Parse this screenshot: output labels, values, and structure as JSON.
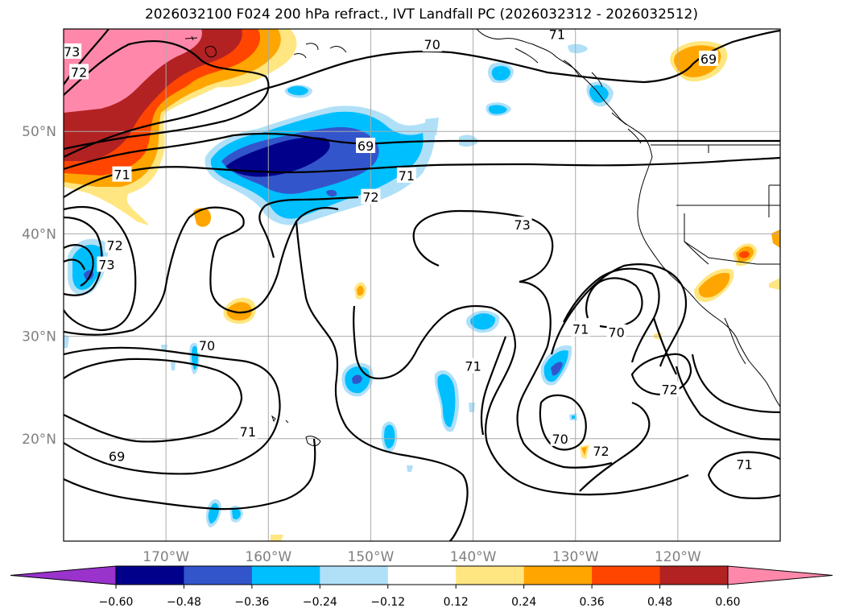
{
  "title": "2026032100 F024 200 hPa refract., IVT Landfall PC (2026032312 - 2026032512)",
  "axes": {
    "lon_ticks": [
      "170°W",
      "160°W",
      "150°W",
      "140°W",
      "130°W",
      "120°W"
    ],
    "lat_ticks": [
      "50°N",
      "40°N",
      "30°N",
      "20°N"
    ],
    "lon_range": [
      -180,
      -110
    ],
    "lat_range": [
      10,
      60
    ]
  },
  "colorbar": {
    "ticks": [
      "−0.60",
      "−0.48",
      "−0.36",
      "−0.24",
      "−0.12",
      "0.12",
      "0.24",
      "0.36",
      "0.48",
      "0.60"
    ],
    "levels": [
      -0.6,
      -0.48,
      -0.36,
      -0.24,
      -0.12,
      0.12,
      0.24,
      0.36,
      0.48,
      0.6
    ],
    "colors": [
      "#9933cc",
      "#00008b",
      "#3355cc",
      "#00bfff",
      "#b0e0f8",
      "#ffffff",
      "#ffe680",
      "#ffa500",
      "#ff4500",
      "#b22222",
      "#ff88aa"
    ]
  },
  "contour_labels": [
    {
      "text": "73",
      "lon": -179.2,
      "lat": 57.8
    },
    {
      "text": "72",
      "lon": -178.5,
      "lat": 55.8
    },
    {
      "text": "71",
      "lon": -174.3,
      "lat": 45.8
    },
    {
      "text": "70",
      "lon": -144.0,
      "lat": 58.5
    },
    {
      "text": "71",
      "lon": -131.8,
      "lat": 59.5
    },
    {
      "text": "69",
      "lon": -117.0,
      "lat": 57.1
    },
    {
      "text": "69",
      "lon": -150.5,
      "lat": 48.6
    },
    {
      "text": "71",
      "lon": -146.5,
      "lat": 45.7
    },
    {
      "text": "72",
      "lon": -150.0,
      "lat": 43.6
    },
    {
      "text": "73",
      "lon": -135.2,
      "lat": 40.9
    },
    {
      "text": "72",
      "lon": -175.0,
      "lat": 38.9
    },
    {
      "text": "73",
      "lon": -175.8,
      "lat": 37.0
    },
    {
      "text": "70",
      "lon": -166.0,
      "lat": 29.1
    },
    {
      "text": "71",
      "lon": -140.0,
      "lat": 27.1
    },
    {
      "text": "71",
      "lon": -129.5,
      "lat": 30.7
    },
    {
      "text": "70",
      "lon": -126.0,
      "lat": 30.4
    },
    {
      "text": "72",
      "lon": -120.8,
      "lat": 24.8
    },
    {
      "text": "70",
      "lon": -131.5,
      "lat": 20.0
    },
    {
      "text": "72",
      "lon": -127.5,
      "lat": 18.8
    },
    {
      "text": "71",
      "lon": -162.0,
      "lat": 20.7
    },
    {
      "text": "69",
      "lon": -174.8,
      "lat": 18.3
    },
    {
      "text": "71",
      "lon": -113.5,
      "lat": 17.5
    }
  ],
  "colors": {
    "contour": "#000000",
    "grid": "#a9a9a9",
    "coast": "#000000"
  }
}
